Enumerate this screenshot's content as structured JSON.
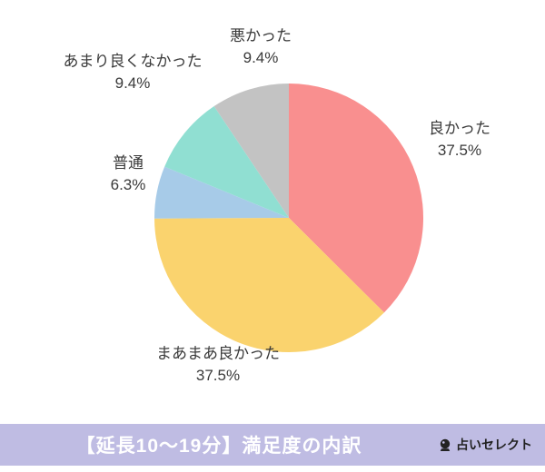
{
  "chart_data": {
    "type": "pie",
    "title": "【延長10〜19分】満足度の内訳",
    "start_angle_deg": -90,
    "direction": "clockwise",
    "legend_position": "none",
    "slices": [
      {
        "label": "良かった",
        "value": 37.5,
        "pct_label": "37.5%",
        "color": "#f98f8f"
      },
      {
        "label": "まあまあ良かった",
        "value": 37.5,
        "pct_label": "37.5%",
        "color": "#fad36e"
      },
      {
        "label": "普通",
        "value": 6.3,
        "pct_label": "6.3%",
        "color": "#a7cbe8"
      },
      {
        "label": "あまり良くなかった",
        "value": 9.4,
        "pct_label": "9.4%",
        "color": "#90dfd2"
      },
      {
        "label": "悪かった",
        "value": 9.4,
        "pct_label": "9.4%",
        "color": "#c3c3c3"
      }
    ]
  },
  "footer": {
    "title": "【延長10〜19分】満足度の内訳",
    "logo_text": "占いセレクト"
  }
}
